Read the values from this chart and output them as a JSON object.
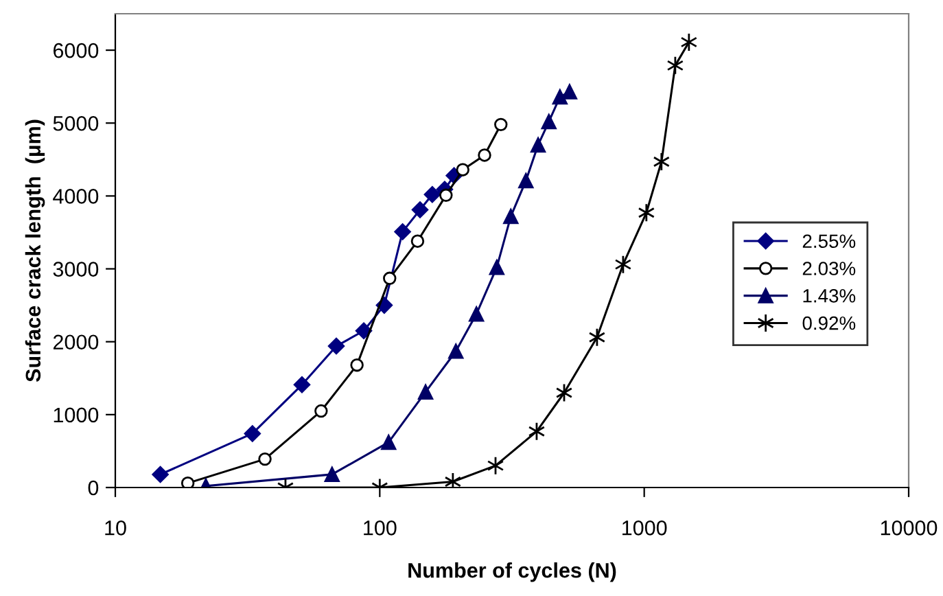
{
  "chart_data": {
    "type": "line",
    "xlabel": "Number of cycles (N)",
    "ylabel": "Surface crack length  (μm)",
    "log": "x",
    "xlim": [
      10,
      10000
    ],
    "xticks": [
      10,
      100,
      1000,
      10000
    ],
    "ylim": [
      0,
      6500
    ],
    "yticks": [
      0,
      1000,
      2000,
      3000,
      4000,
      5000,
      6000
    ],
    "grid": false,
    "legend": "right",
    "series": [
      {
        "name": "2.55%",
        "color": "#000080",
        "marker": "diamond",
        "x": [
          14.8,
          33,
          50.8,
          68.5,
          87,
          104,
          122,
          142,
          158,
          176,
          191
        ],
        "values": [
          180,
          740,
          1410,
          1940,
          2150,
          2500,
          3510,
          3810,
          4020,
          4090,
          4280
        ]
      },
      {
        "name": "2.03%",
        "color": "#000000",
        "marker": "circle",
        "x": [
          18.8,
          36.8,
          60,
          82,
          109,
          139,
          178,
          206,
          249,
          287
        ],
        "values": [
          60,
          390,
          1050,
          1680,
          2870,
          3380,
          4010,
          4360,
          4560,
          4980
        ]
      },
      {
        "name": "1.43%",
        "color": "#000066",
        "marker": "triangle",
        "x": [
          22,
          66,
          108,
          149,
          194,
          232,
          277,
          313,
          357,
          397,
          436,
          480,
          522
        ],
        "values": [
          20,
          180,
          620,
          1310,
          1870,
          2380,
          3020,
          3720,
          4210,
          4700,
          5020,
          5360,
          5430
        ]
      },
      {
        "name": "0.92%",
        "color": "#000000",
        "marker": "cross",
        "x": [
          44,
          100,
          189,
          274,
          392,
          498,
          663,
          832,
          1019,
          1162,
          1310,
          1476
        ],
        "values": [
          0,
          0,
          80,
          300,
          770,
          1300,
          2060,
          3060,
          3770,
          4470,
          5790,
          6110
        ]
      }
    ]
  }
}
